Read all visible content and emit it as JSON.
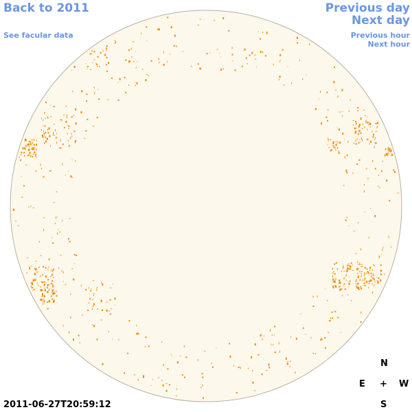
{
  "navigation": {
    "back_year": "Back to 2011",
    "facular_data": "See facular data",
    "previous_day": "Previous day",
    "next_day": "Next day",
    "previous_hour": "Previous hour",
    "next_hour": "Next hour"
  },
  "image": {
    "timestamp": "2011-06-27T20:59:12"
  },
  "compass": {
    "north": "N",
    "east": "E",
    "center": "+",
    "west": "W",
    "south": "S"
  }
}
